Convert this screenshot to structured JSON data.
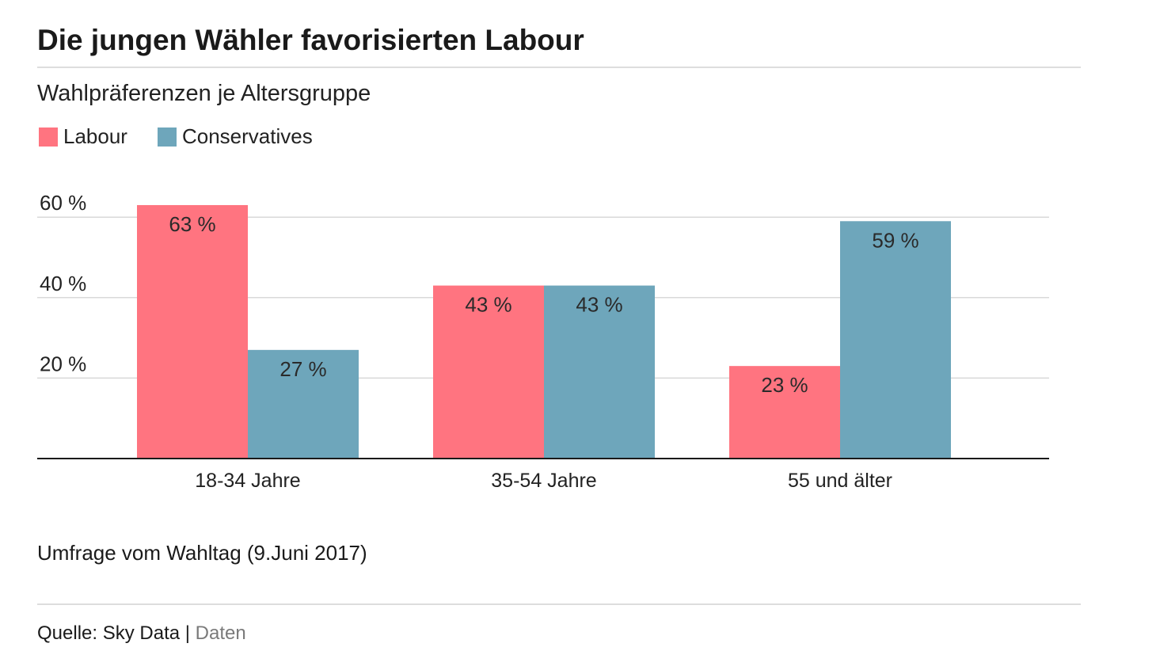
{
  "header": {
    "title": "Die jungen Wähler favorisierten Labour",
    "subtitle": "Wahlpräferenzen je Altersgruppe"
  },
  "footer": {
    "note": "Umfrage vom Wahltag (9.Juni 2017)",
    "source_prefix": "Quelle: Sky Data",
    "separator": "|",
    "data_link": "Daten"
  },
  "chart_data": {
    "type": "bar",
    "categories": [
      "18-34 Jahre",
      "35-54 Jahre",
      "55 und älter"
    ],
    "series": [
      {
        "name": "Labour",
        "color": "#ff7480",
        "values": [
          63,
          43,
          23
        ],
        "labels": [
          "63 %",
          "43 %",
          "23 %"
        ]
      },
      {
        "name": "Conservatives",
        "color": "#6ea6bb",
        "values": [
          27,
          43,
          59
        ],
        "labels": [
          "27 %",
          "43 %",
          "59 %"
        ]
      }
    ],
    "yticks": [
      20,
      40,
      60
    ],
    "ytick_labels": [
      "20 %",
      "40 %",
      "60 %"
    ],
    "ylim": [
      0,
      65
    ],
    "grid": true,
    "legend_position": "top-left"
  }
}
